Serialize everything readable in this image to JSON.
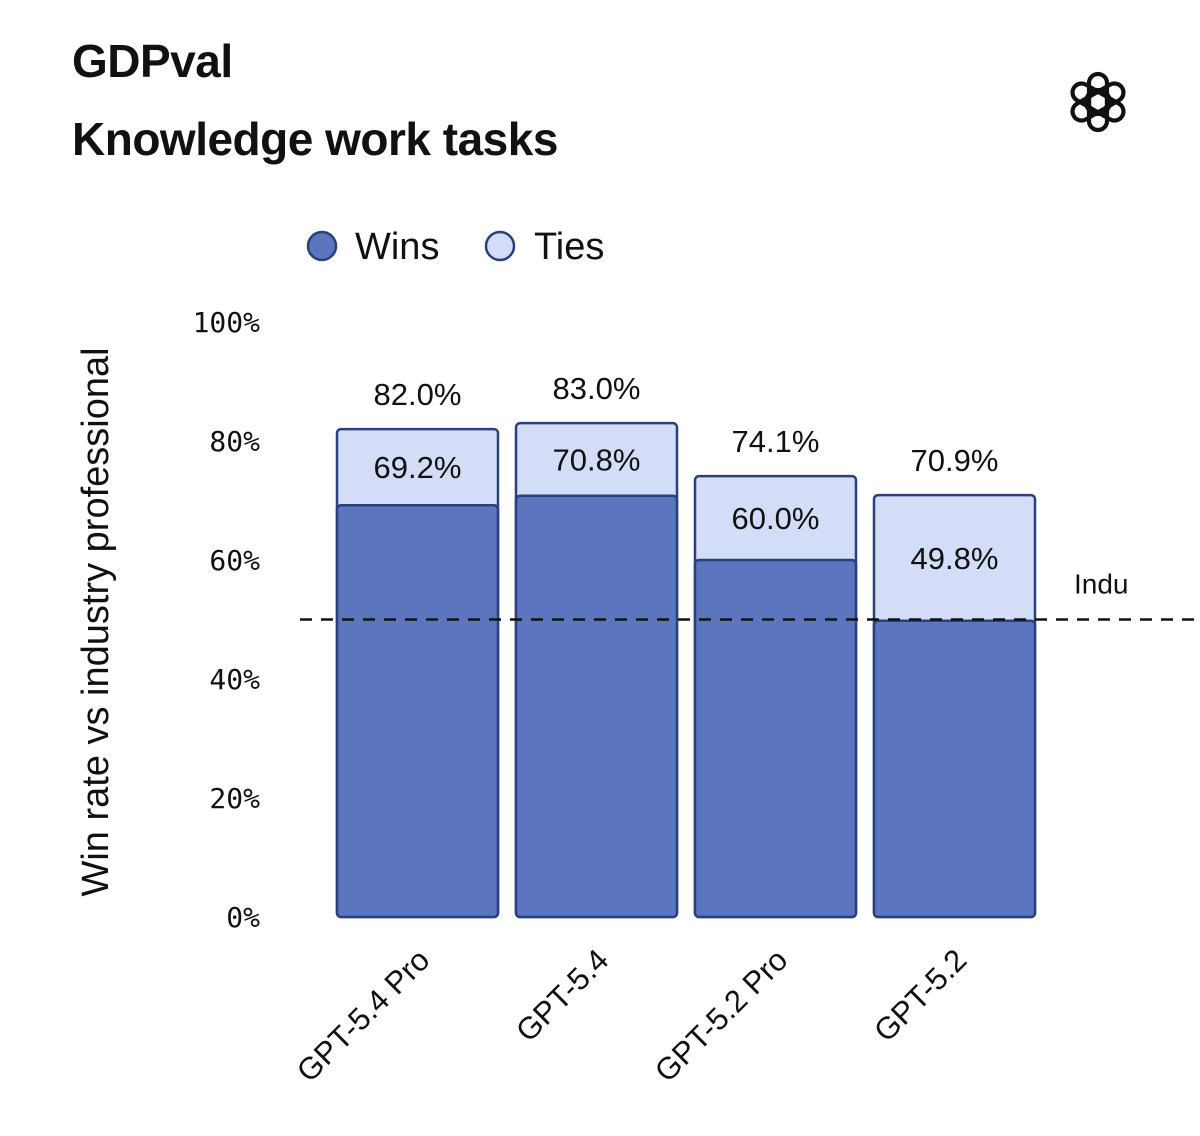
{
  "header": {
    "title": "GDPval",
    "subtitle": "Knowledge work tasks",
    "logo_icon": "openai-logo-icon"
  },
  "chart_data": {
    "type": "bar",
    "stacked": true,
    "categories": [
      "GPT-5.4 Pro",
      "GPT-5.4",
      "GPT-5.2 Pro",
      "GPT-5.2"
    ],
    "series": [
      {
        "name": "Wins",
        "values": [
          69.2,
          70.8,
          60.0,
          49.8
        ],
        "color": "#5b76bf"
      },
      {
        "name": "Ties",
        "values": [
          12.8,
          12.2,
          14.1,
          21.1
        ],
        "color": "#d3ddf7"
      }
    ],
    "wins_labels": [
      "69.2%",
      "70.8%",
      "60.0%",
      "49.8%"
    ],
    "total_labels": [
      "82.0%",
      "83.0%",
      "74.1%",
      "70.9%"
    ],
    "ylabel": "Win rate vs industry professional",
    "ylim": [
      0,
      100
    ],
    "yticks": [
      "0%",
      "20%",
      "40%",
      "60%",
      "80%",
      "100%"
    ],
    "ytick_values": [
      0,
      20,
      40,
      60,
      80,
      100
    ],
    "reference_line": {
      "value": 50,
      "label": "Indu",
      "style": "dashed"
    },
    "legend_position": "top",
    "edge_color": "#2b3f7d",
    "grid": false
  }
}
